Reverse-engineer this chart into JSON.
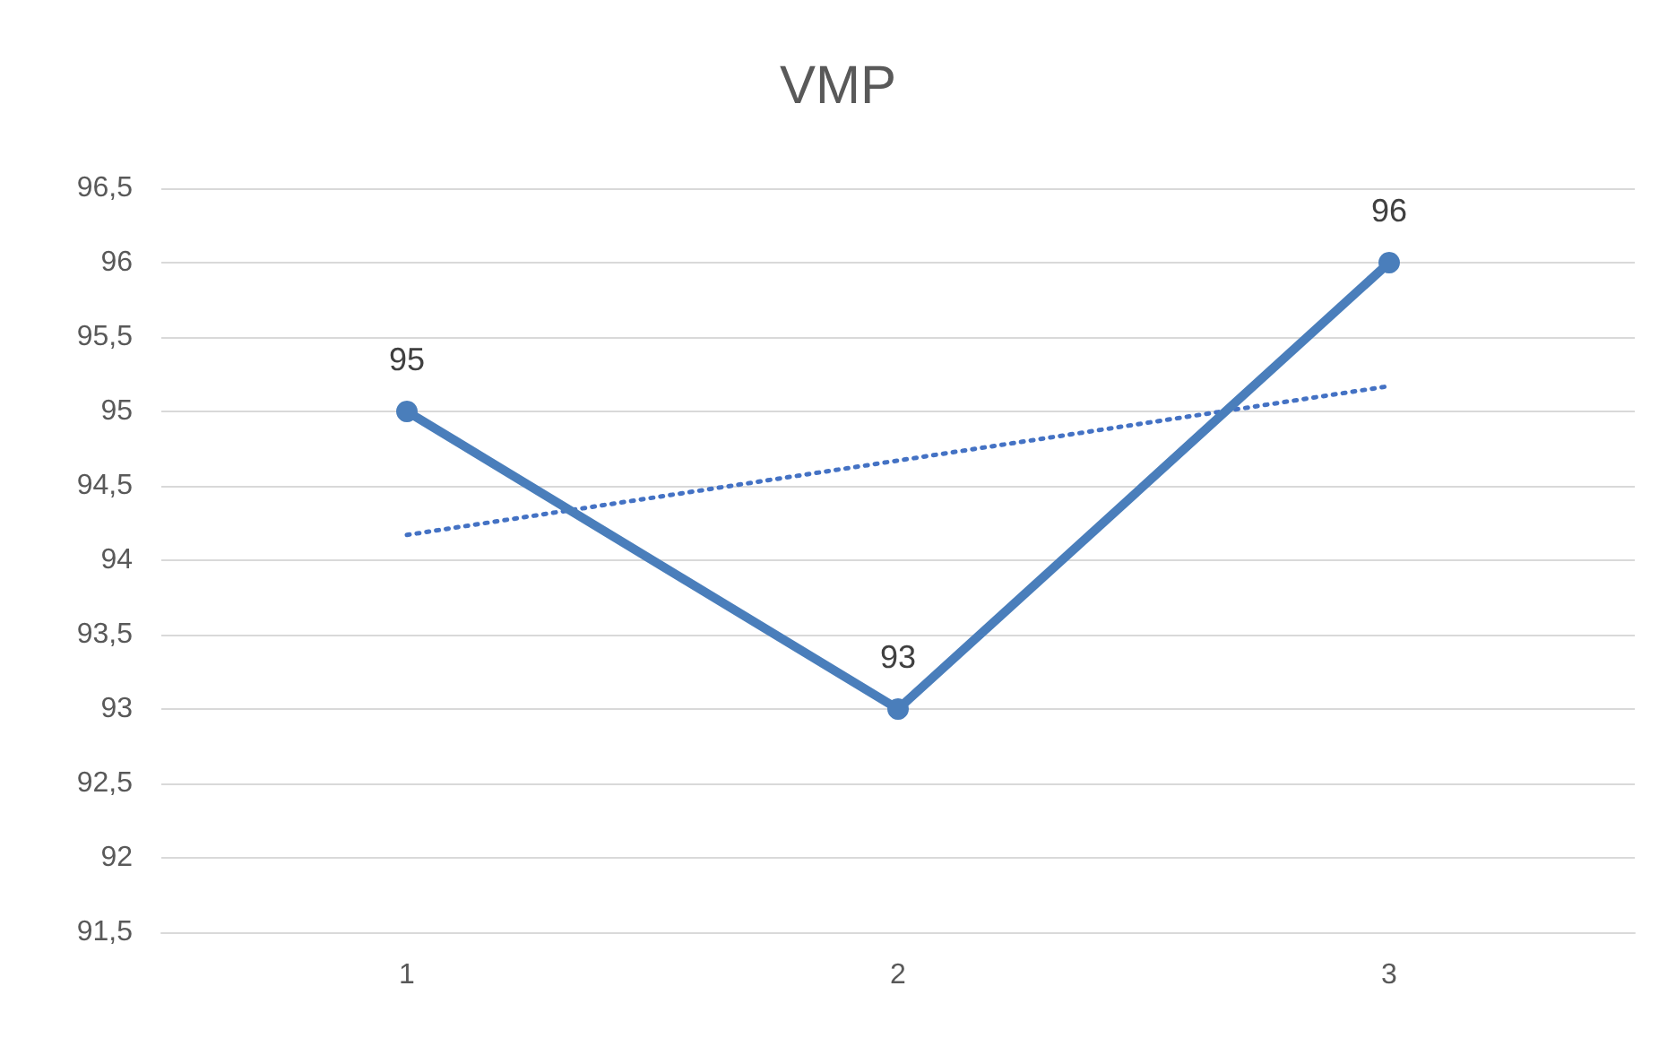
{
  "chart_data": {
    "type": "line",
    "title": "VMP",
    "categories": [
      "1",
      "2",
      "3"
    ],
    "series": [
      {
        "color": "#4a7ebb",
        "values": [
          95,
          93,
          96
        ],
        "value_labels": [
          "95",
          "93",
          "96"
        ],
        "marker": "circle",
        "line_style": "solid"
      },
      {
        "type": "line",
        "color": "#4472c4",
        "x": [
          "1",
          "2",
          "3"
        ],
        "values": [
          94.17,
          94.67,
          95.17
        ],
        "marker": "none",
        "line_style": "dotted"
      }
    ],
    "ylim": [
      91.5,
      96.5
    ],
    "yticks": [
      {
        "value": 91.5,
        "label": "91,5"
      },
      92,
      {
        "value": 92.5,
        "label": "92,5"
      },
      93,
      {
        "value": 93.5,
        "label": "93,5"
      },
      94,
      {
        "value": 94.5,
        "label": "94,5"
      },
      95,
      {
        "value": 95.5,
        "label": "95,5"
      },
      96,
      {
        "value": 96.5,
        "label": "96,5"
      }
    ],
    "grid": "y"
  }
}
